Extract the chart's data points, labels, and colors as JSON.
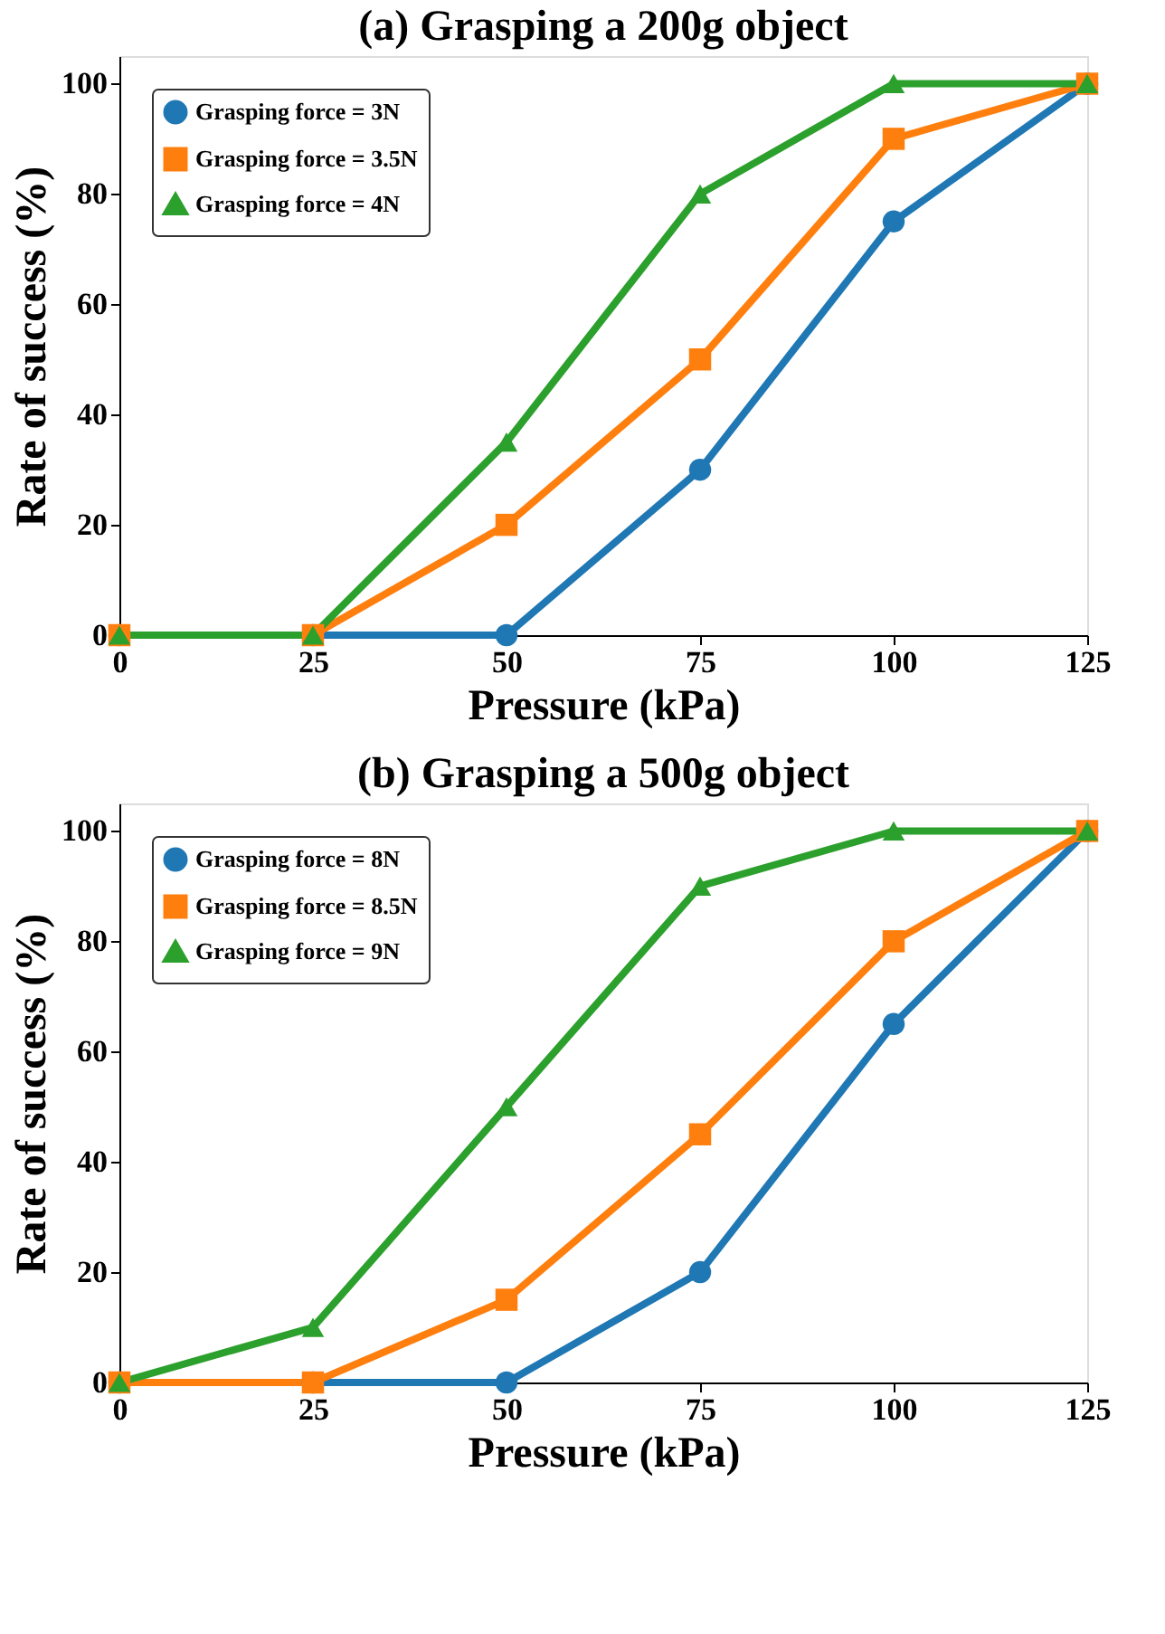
{
  "chart_data": [
    {
      "type": "line",
      "title": "(a) Grasping a 200g object",
      "xlabel": "Pressure (kPa)",
      "ylabel": "Rate of success  (%)",
      "x": [
        0,
        25,
        50,
        75,
        100,
        125
      ],
      "xlim": [
        0,
        125
      ],
      "xticks": [
        0,
        25,
        50,
        75,
        100,
        125
      ],
      "ylim": [
        0,
        105
      ],
      "yticks": [
        0,
        20,
        40,
        60,
        80,
        100
      ],
      "grid": false,
      "legend": "top left",
      "line_style": "solid",
      "series": [
        {
          "name": "Grasping force = 3N",
          "color": "#1f77b4",
          "marker": "circle",
          "values": [
            0,
            0,
            0,
            30,
            75,
            100
          ]
        },
        {
          "name": "Grasping force = 3.5N",
          "color": "#ff7f0e",
          "marker": "square",
          "values": [
            0,
            0,
            20,
            50,
            90,
            100
          ]
        },
        {
          "name": "Grasping force = 4N",
          "color": "#2ca02c",
          "marker": "triangle",
          "values": [
            0,
            0,
            35,
            80,
            100,
            100
          ]
        }
      ]
    },
    {
      "type": "line",
      "title": "(b) Grasping a 500g object",
      "xlabel": "Pressure (kPa)",
      "ylabel": "Rate of success  (%)",
      "x": [
        0,
        25,
        50,
        75,
        100,
        125
      ],
      "xlim": [
        0,
        125
      ],
      "xticks": [
        0,
        25,
        50,
        75,
        100,
        125
      ],
      "ylim": [
        0,
        105
      ],
      "yticks": [
        0,
        20,
        40,
        60,
        80,
        100
      ],
      "grid": false,
      "legend": "top left",
      "line_style": "solid",
      "series": [
        {
          "name": "Grasping force = 8N",
          "color": "#1f77b4",
          "marker": "circle",
          "values": [
            0,
            0,
            0,
            20,
            65,
            100
          ]
        },
        {
          "name": "Grasping force = 8.5N",
          "color": "#ff7f0e",
          "marker": "square",
          "values": [
            0,
            0,
            15,
            45,
            80,
            100
          ]
        },
        {
          "name": "Grasping force = 9N",
          "color": "#2ca02c",
          "marker": "triangle",
          "values": [
            0,
            10,
            50,
            90,
            100,
            100
          ]
        }
      ]
    }
  ]
}
